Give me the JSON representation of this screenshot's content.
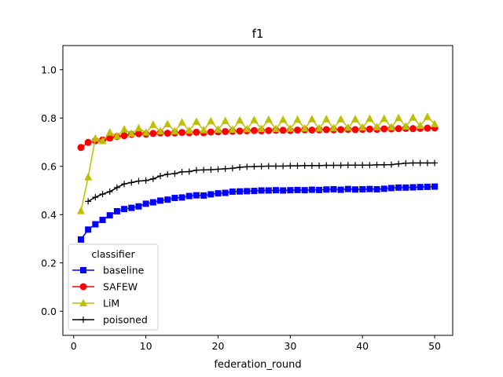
{
  "chart_data": {
    "type": "line",
    "title": "f1",
    "xlabel": "federation_round",
    "ylabel": "",
    "xlim": [
      -1.5,
      52.5
    ],
    "ylim": [
      -0.1,
      1.1
    ],
    "xticks": [
      0,
      10,
      20,
      30,
      40,
      50
    ],
    "yticks": [
      0.0,
      0.2,
      0.4,
      0.6,
      0.8,
      1.0
    ],
    "xtick_labels": [
      "0",
      "10",
      "20",
      "30",
      "40",
      "50"
    ],
    "ytick_labels": [
      "0.0",
      "0.2",
      "0.4",
      "0.6",
      "0.8",
      "1.0"
    ],
    "grid": false,
    "legend": {
      "title": "classifier",
      "placement": "lower-left"
    },
    "series": [
      {
        "name": "baseline",
        "color": "#0000ff",
        "marker": "square",
        "x": [
          1,
          2,
          3,
          4,
          5,
          6,
          7,
          8,
          9,
          10,
          11,
          12,
          13,
          14,
          15,
          16,
          17,
          18,
          19,
          20,
          21,
          22,
          23,
          24,
          25,
          26,
          27,
          28,
          29,
          30,
          31,
          32,
          33,
          34,
          35,
          36,
          37,
          38,
          39,
          40,
          41,
          42,
          43,
          44,
          45,
          46,
          47,
          48,
          49,
          50
        ],
        "values": [
          0.297,
          0.338,
          0.36,
          0.378,
          0.397,
          0.414,
          0.423,
          0.428,
          0.434,
          0.445,
          0.451,
          0.458,
          0.462,
          0.469,
          0.471,
          0.477,
          0.48,
          0.479,
          0.484,
          0.488,
          0.49,
          0.495,
          0.496,
          0.497,
          0.498,
          0.5,
          0.5,
          0.501,
          0.5,
          0.501,
          0.502,
          0.501,
          0.503,
          0.502,
          0.504,
          0.505,
          0.503,
          0.506,
          0.504,
          0.505,
          0.506,
          0.505,
          0.507,
          0.51,
          0.512,
          0.512,
          0.513,
          0.514,
          0.515,
          0.516
        ]
      },
      {
        "name": "SAFEW",
        "color": "#ff0000",
        "marker": "circle",
        "x": [
          1,
          2,
          3,
          4,
          5,
          6,
          7,
          8,
          9,
          10,
          11,
          12,
          13,
          14,
          15,
          16,
          17,
          18,
          19,
          20,
          21,
          22,
          23,
          24,
          25,
          26,
          27,
          28,
          29,
          30,
          31,
          32,
          33,
          34,
          35,
          36,
          37,
          38,
          39,
          40,
          41,
          42,
          43,
          44,
          45,
          46,
          47,
          48,
          49,
          50
        ],
        "values": [
          0.678,
          0.699,
          0.706,
          0.709,
          0.717,
          0.723,
          0.727,
          0.732,
          0.735,
          0.733,
          0.736,
          0.738,
          0.737,
          0.738,
          0.74,
          0.739,
          0.741,
          0.739,
          0.742,
          0.743,
          0.744,
          0.745,
          0.746,
          0.747,
          0.748,
          0.747,
          0.748,
          0.749,
          0.749,
          0.748,
          0.75,
          0.751,
          0.75,
          0.751,
          0.752,
          0.751,
          0.752,
          0.753,
          0.752,
          0.753,
          0.754,
          0.753,
          0.755,
          0.755,
          0.756,
          0.757,
          0.756,
          0.757,
          0.758,
          0.759
        ]
      },
      {
        "name": "LiM",
        "color": "#bfbf00",
        "marker": "triangle",
        "x": [
          1,
          2,
          3,
          4,
          5,
          6,
          7,
          8,
          9,
          10,
          11,
          12,
          13,
          14,
          15,
          16,
          17,
          18,
          19,
          20,
          21,
          22,
          23,
          24,
          25,
          26,
          27,
          28,
          29,
          30,
          31,
          32,
          33,
          34,
          35,
          36,
          37,
          38,
          39,
          40,
          41,
          42,
          43,
          44,
          45,
          46,
          47,
          48,
          49,
          50
        ],
        "values": [
          0.415,
          0.555,
          0.715,
          0.705,
          0.74,
          0.725,
          0.753,
          0.735,
          0.758,
          0.74,
          0.772,
          0.745,
          0.775,
          0.745,
          0.782,
          0.748,
          0.785,
          0.75,
          0.787,
          0.752,
          0.788,
          0.752,
          0.79,
          0.754,
          0.792,
          0.755,
          0.793,
          0.755,
          0.793,
          0.756,
          0.793,
          0.757,
          0.795,
          0.757,
          0.795,
          0.758,
          0.795,
          0.76,
          0.795,
          0.761,
          0.797,
          0.762,
          0.797,
          0.762,
          0.8,
          0.765,
          0.802,
          0.768,
          0.805,
          0.775
        ]
      },
      {
        "name": "poisoned",
        "color": "#000000",
        "marker": "plus",
        "x": [
          2,
          3,
          4,
          5,
          6,
          7,
          8,
          9,
          10,
          11,
          12,
          13,
          14,
          15,
          16,
          17,
          18,
          19,
          20,
          21,
          22,
          23,
          24,
          25,
          26,
          27,
          28,
          29,
          30,
          31,
          32,
          33,
          34,
          35,
          36,
          37,
          38,
          39,
          40,
          41,
          42,
          43,
          44,
          45,
          46,
          47,
          48,
          49,
          50
        ],
        "values": [
          0.455,
          0.472,
          0.485,
          0.495,
          0.512,
          0.527,
          0.533,
          0.539,
          0.541,
          0.548,
          0.56,
          0.567,
          0.57,
          0.577,
          0.578,
          0.584,
          0.585,
          0.586,
          0.588,
          0.59,
          0.592,
          0.596,
          0.598,
          0.599,
          0.6,
          0.601,
          0.601,
          0.601,
          0.602,
          0.602,
          0.603,
          0.603,
          0.603,
          0.604,
          0.604,
          0.604,
          0.605,
          0.605,
          0.605,
          0.605,
          0.606,
          0.606,
          0.607,
          0.61,
          0.613,
          0.614,
          0.614,
          0.614,
          0.614
        ]
      }
    ]
  }
}
